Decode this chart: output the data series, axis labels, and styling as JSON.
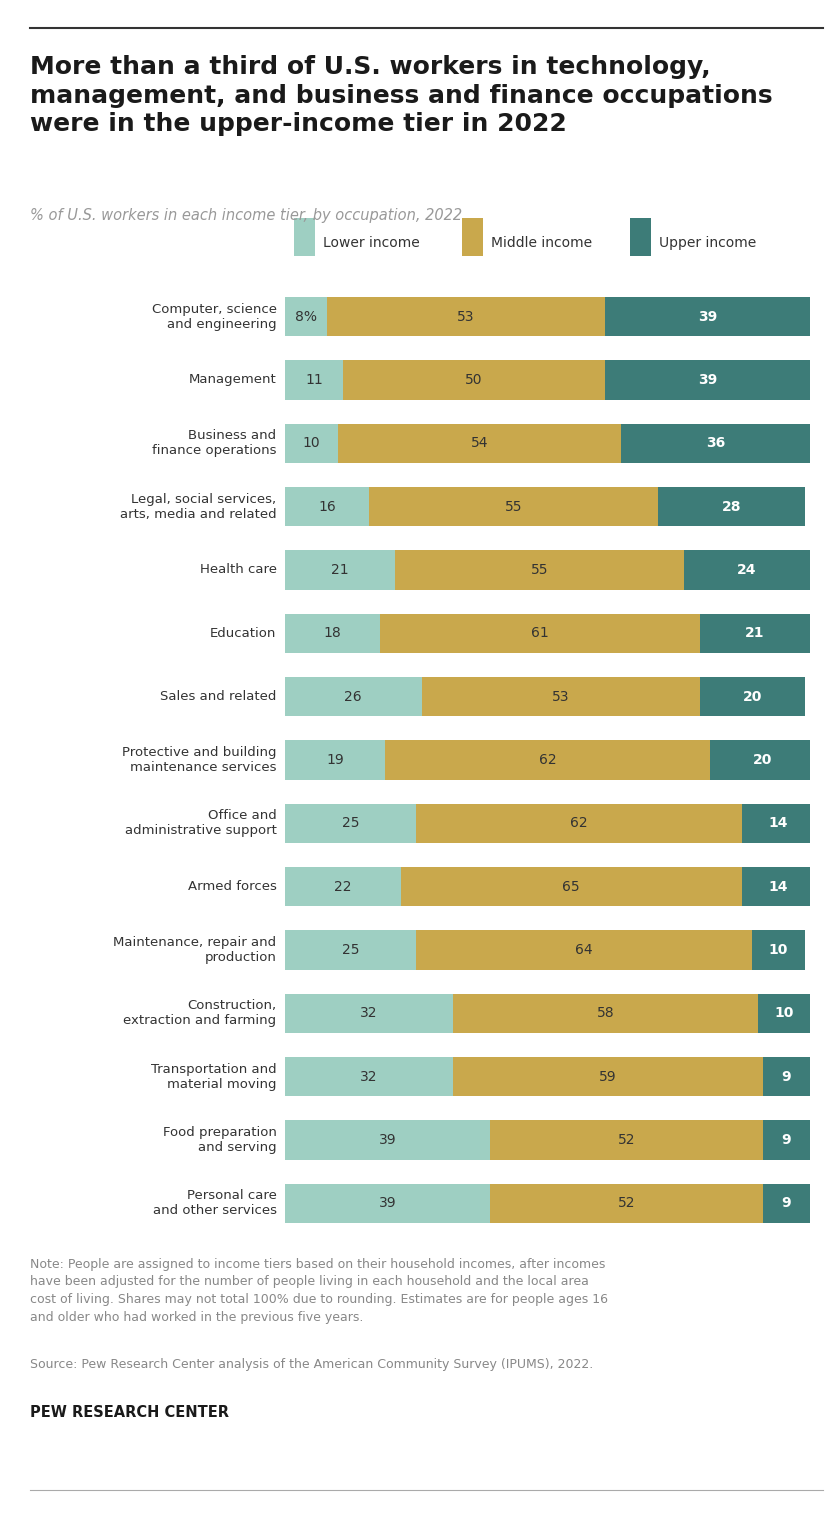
{
  "title_line1": "More than a third of U.S. workers in technology,",
  "title_line2": "management, and business and finance occupations",
  "title_line3": "were in the upper-income tier in 2022",
  "subtitle": "% of U.S. workers in each income tier, by occupation, 2022",
  "categories": [
    "Computer, science\nand engineering",
    "Management",
    "Business and\nfinance operations",
    "Legal, social services,\narts, media and related",
    "Health care",
    "Education",
    "Sales and related",
    "Protective and building\nmaintenance services",
    "Office and\nadministrative support",
    "Armed forces",
    "Maintenance, repair and\nproduction",
    "Construction,\nextraction and farming",
    "Transportation and\nmaterial moving",
    "Food preparation\nand serving",
    "Personal care\nand other services"
  ],
  "lower": [
    8,
    11,
    10,
    16,
    21,
    18,
    26,
    19,
    25,
    22,
    25,
    32,
    32,
    39,
    39
  ],
  "middle": [
    53,
    50,
    54,
    55,
    55,
    61,
    53,
    62,
    62,
    65,
    64,
    58,
    59,
    52,
    52
  ],
  "upper": [
    39,
    39,
    36,
    28,
    24,
    21,
    20,
    20,
    14,
    14,
    10,
    10,
    9,
    9,
    9
  ],
  "lower_label": [
    "8%",
    "11",
    "10",
    "16",
    "21",
    "18",
    "26",
    "19",
    "25",
    "22",
    "25",
    "32",
    "32",
    "39",
    "39"
  ],
  "color_lower": "#9ecfc2",
  "color_middle": "#c9a84c",
  "color_upper": "#3d7c78",
  "legend_labels": [
    "Lower income",
    "Middle income",
    "Upper income"
  ],
  "note_line1": "Note: People are assigned to income tiers based on their household incomes, after incomes",
  "note_line2": "have been adjusted for the number of people living in each household and the local area",
  "note_line3": "cost of living. Shares may not total 100% due to rounding. Estimates are for people ages 16",
  "note_line4": "and older who had worked in the previous five years.",
  "source": "Source: Pew Research Center analysis of the American Community Survey (IPUMS), 2022.",
  "branding": "PEW RESEARCH CENTER",
  "background_color": "#ffffff"
}
